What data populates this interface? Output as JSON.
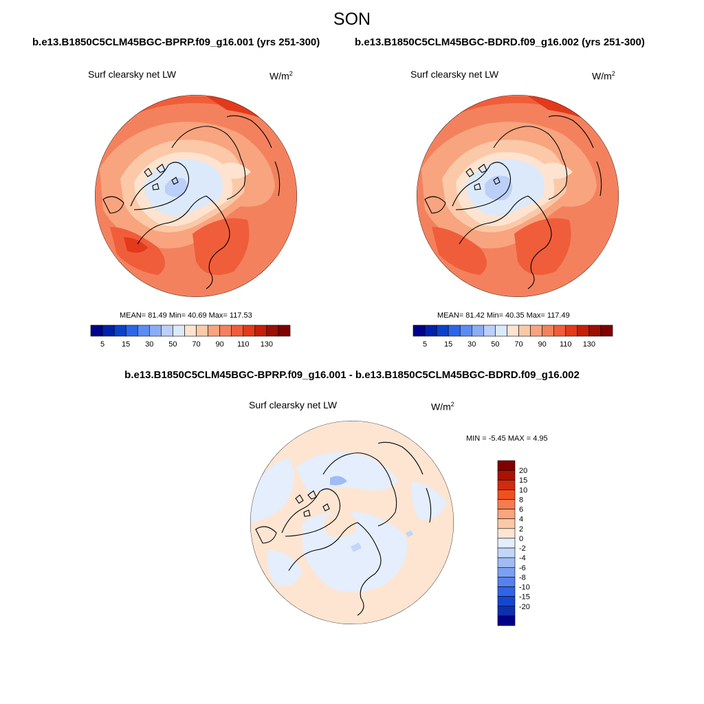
{
  "title": "SON",
  "panels": {
    "left": {
      "case": "b.e13.B1850C5CLM45BGC-BPRP.f09_g16.001 (yrs 251-300)",
      "variable": "Surf clearsky net LW",
      "units_base": "W/m",
      "units_exp": "2",
      "stats": "MEAN=  81.49  Min=  40.69  Max= 117.53"
    },
    "right": {
      "case": "b.e13.B1850C5CLM45BGC-BDRD.f09_g16.002 (yrs 251-300)",
      "variable": "Surf clearsky net LW",
      "units_base": "W/m",
      "units_exp": "2",
      "stats": "MEAN=  81.42  Min=  40.35  Max= 117.49"
    },
    "diff": {
      "case": "b.e13.B1850C5CLM45BGC-BPRP.f09_g16.001 - b.e13.B1850C5CLM45BGC-BDRD.f09_g16.002",
      "variable": "Surf clearsky net LW",
      "units_base": "W/m",
      "units_exp": "2",
      "stats": "MIN =  -5.45 MAX =   4.95"
    }
  },
  "colorbar_abs": {
    "colors": [
      "#00008b",
      "#0022aa",
      "#0b43c8",
      "#2c66e8",
      "#5a8cf2",
      "#8aadf5",
      "#bccff8",
      "#dce9fb",
      "#fde3d0",
      "#fbc9a8",
      "#f8a47f",
      "#f4815d",
      "#f05d3a",
      "#e23a1b",
      "#c41f0a",
      "#9a1003",
      "#800000"
    ],
    "labels": [
      "5",
      "15",
      "30",
      "50",
      "70",
      "90",
      "110",
      "130"
    ]
  },
  "colorbar_diff": {
    "colors": [
      "#800000",
      "#a81304",
      "#d02b10",
      "#f0501e",
      "#f57c50",
      "#f9a57f",
      "#fbc9a8",
      "#fde5d2",
      "#e4eefc",
      "#c3d6f8",
      "#9fbcf3",
      "#7ba0f0",
      "#5582ec",
      "#3064e6",
      "#1446d2",
      "#0d2fb0",
      "#00008b"
    ],
    "labels": [
      "20",
      "15",
      "10",
      "8",
      "6",
      "4",
      "2",
      "0",
      "-2",
      "-4",
      "-6",
      "-8",
      "-10",
      "-15",
      "-20"
    ]
  }
}
